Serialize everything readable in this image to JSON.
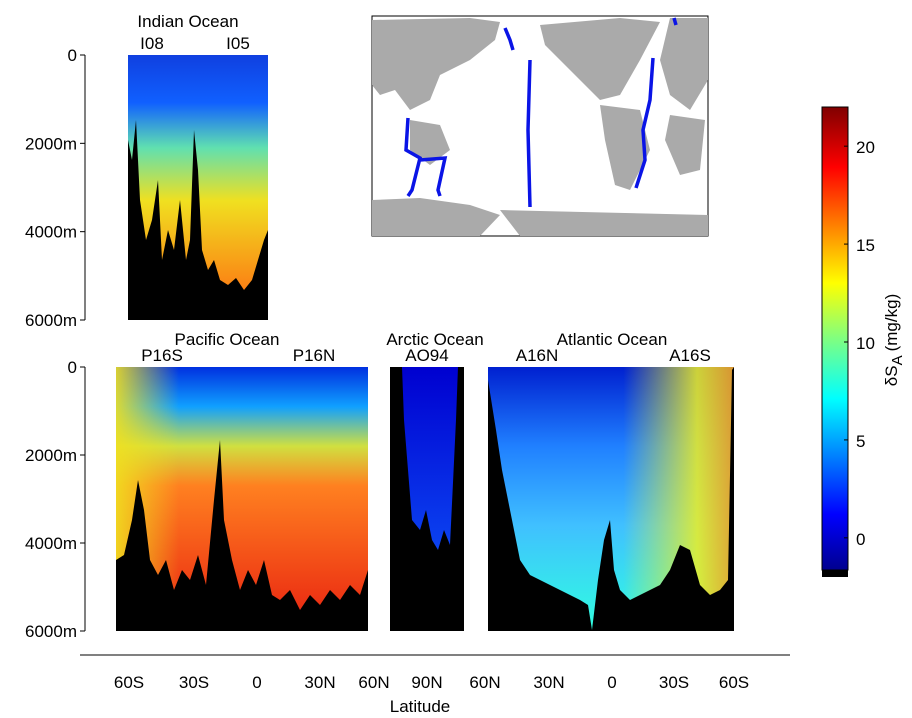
{
  "chart_data": {
    "type": "section",
    "panels": [
      {
        "title": "Indian Ocean",
        "sections": [
          "I08",
          "I05"
        ]
      },
      {
        "title": "Pacific Ocean",
        "sections": [
          "P16S",
          "P16N"
        ]
      },
      {
        "title": "Arctic Ocean",
        "sections": [
          "AO94"
        ]
      },
      {
        "title": "Atlantic Ocean",
        "sections": [
          "A16N",
          "A16S"
        ]
      }
    ],
    "ylim": [
      0,
      6000
    ],
    "yticks": [
      {
        "value": 0,
        "label": "0"
      },
      {
        "value": 2000,
        "label": "2000m"
      },
      {
        "value": 4000,
        "label": "4000m"
      },
      {
        "value": 6000,
        "label": "6000m"
      }
    ],
    "x_label": "Latitude",
    "categories": [
      "60S",
      "30S",
      "0",
      "30N",
      "60N",
      "90N",
      "60N",
      "30N",
      "0",
      "30S",
      "60S"
    ],
    "colorbar": {
      "label": "δS",
      "label_subscript": "A",
      "label_unit": "(mg/kg)",
      "lim": [
        -2,
        22
      ],
      "ticks": [
        0,
        5,
        10,
        15,
        20
      ]
    }
  }
}
